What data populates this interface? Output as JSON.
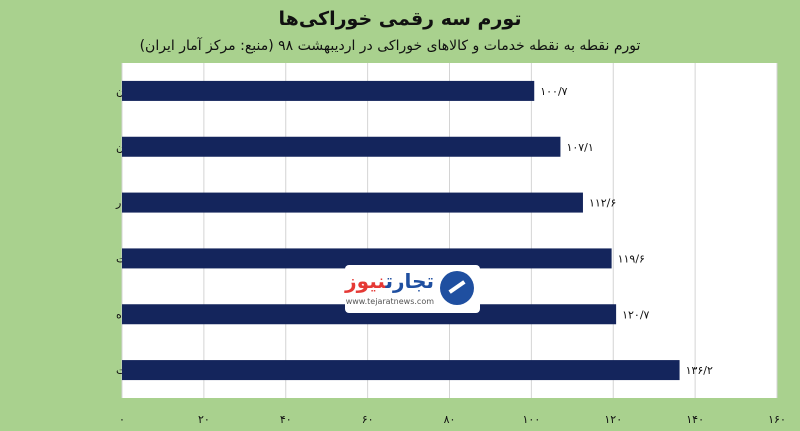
{
  "chart_data": {
    "type": "bar",
    "orientation": "horizontal",
    "title": "تورم سه رقمی خوراکی‌ها",
    "subtitle": "تورم نقطه به نقطه خدمات و کالاهای خوراکی در اردیبهشت ۹۸ (منبع: مرکز آمار ایران)",
    "categories": [
      "گوشت قرمز و ماکیان",
      "ماهی‌ها و صدف‌دارن",
      "میوه و خشکبار",
      "دخانیات",
      "محصولات طبقه‌بندی نشده",
      "سبزیجات"
    ],
    "values": [
      100.7,
      107.1,
      112.6,
      119.6,
      120.7,
      136.2
    ],
    "value_labels": [
      "۱۰۰/۷",
      "۱۰۷/۱",
      "۱۱۲/۶",
      "۱۱۹/۶",
      "۱۲۰/۷",
      "۱۳۶/۲"
    ],
    "xlim": [
      0,
      160
    ],
    "xticks": [
      0,
      20,
      40,
      60,
      80,
      100,
      120,
      140,
      160
    ],
    "xtick_labels": [
      "۰",
      "۲۰",
      "۴۰",
      "۶۰",
      "۸۰",
      "۱۰۰",
      "۱۲۰",
      "۱۴۰",
      "۱۶۰"
    ],
    "grid": true,
    "colors": {
      "bar": "#14255c",
      "background": "#a9d18e",
      "plot_background": "#ffffff",
      "grid": "#d4d4d4"
    }
  },
  "watermark": {
    "brand_text_blue": "تجارت",
    "brand_text_red": "نیوز",
    "url": "www.tejaratnews.com"
  }
}
